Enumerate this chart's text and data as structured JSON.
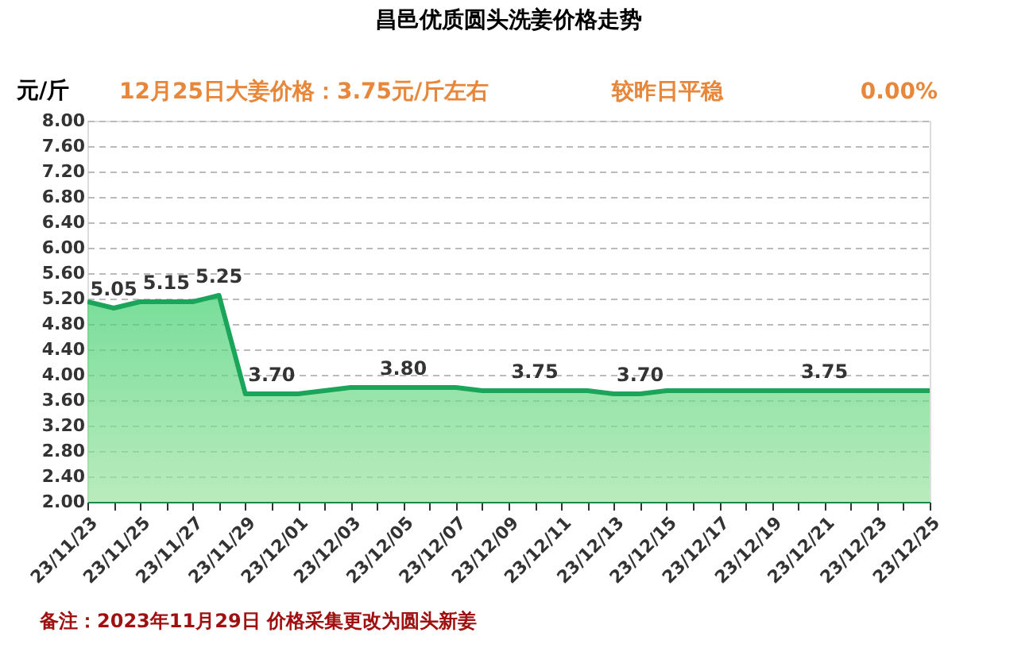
{
  "chart_data": {
    "type": "area",
    "title": "昌邑优质圆头洗姜价格走势",
    "subtitle": "12月25日大姜价格：3.75元/斤左右",
    "ylabel": "元/斤",
    "categories": [
      "23/11/23",
      null,
      "23/11/25",
      null,
      "23/11/27",
      null,
      "23/11/29",
      null,
      "23/12/01",
      null,
      "23/12/03",
      null,
      "23/12/05",
      null,
      "23/12/07",
      null,
      "23/12/09",
      null,
      "23/12/11",
      null,
      "23/12/13",
      null,
      "23/12/15",
      null,
      "23/12/17",
      null,
      "23/12/19",
      null,
      "23/12/21",
      null,
      "23/12/23",
      null,
      "23/12/25"
    ],
    "series": [
      {
        "color": "#1aa55a",
        "values": [
          5.15,
          5.05,
          5.15,
          5.15,
          5.15,
          5.25,
          3.7,
          3.7,
          3.7,
          3.75,
          3.8,
          3.8,
          3.8,
          3.8,
          3.8,
          3.75,
          3.75,
          3.75,
          3.75,
          3.75,
          3.7,
          3.7,
          3.75,
          3.75,
          3.75,
          3.75,
          3.75,
          3.75,
          3.75,
          3.75,
          3.75,
          3.75,
          3.75
        ],
        "value_labels": [
          null,
          "5.05",
          null,
          "5.15",
          null,
          "5.25",
          null,
          "3.70",
          null,
          null,
          null,
          null,
          "3.80",
          null,
          null,
          null,
          null,
          "3.75",
          null,
          null,
          null,
          "3.70",
          null,
          null,
          null,
          null,
          null,
          null,
          "3.75",
          null,
          null,
          null,
          null
        ]
      }
    ],
    "ylim": [
      2,
      8
    ],
    "yticks": [
      {
        "value": 2,
        "label": "2.00"
      },
      {
        "value": 2.4,
        "label": "2.40"
      },
      {
        "value": 2.8,
        "label": "2.80"
      },
      {
        "value": 3.2,
        "label": "3.20"
      },
      {
        "value": 3.6,
        "label": "3.60"
      },
      {
        "value": 4,
        "label": "4.00"
      },
      {
        "value": 4.4,
        "label": "4.40"
      },
      {
        "value": 4.8,
        "label": "4.80"
      },
      {
        "value": 5.2,
        "label": "5.20"
      },
      {
        "value": 5.6,
        "label": "5.60"
      },
      {
        "value": 6,
        "label": "6.00"
      },
      {
        "value": 6.4,
        "label": "6.40"
      },
      {
        "value": 6.8,
        "label": "6.80"
      },
      {
        "value": 7.2,
        "label": "7.20"
      },
      {
        "value": 7.6,
        "label": "7.60"
      },
      {
        "value": 8,
        "label": "8.00"
      }
    ],
    "grid": "y",
    "marker": "none",
    "annotations": [
      "较昨日平稳",
      "0.00%",
      "备注：2023年11月29日 价格采集更改为圆头新姜"
    ]
  }
}
